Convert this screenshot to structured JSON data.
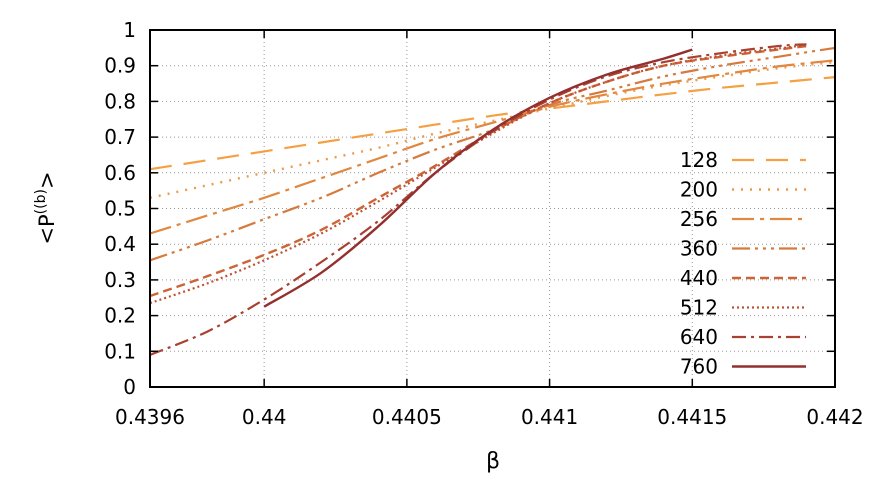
{
  "chart_data": {
    "type": "line",
    "title": "",
    "xlabel": "β",
    "ylabel_main": "<P",
    "ylabel_sup": "((b)",
    "ylabel_end": ">",
    "xlim": [
      0.4396,
      0.442
    ],
    "ylim": [
      0,
      1
    ],
    "x_ticks": [
      {
        "value": 0.4396,
        "label": "0.4396"
      },
      {
        "value": 0.44,
        "label": "0.44"
      },
      {
        "value": 0.4405,
        "label": "0.4405"
      },
      {
        "value": 0.441,
        "label": "0.441"
      },
      {
        "value": 0.4415,
        "label": "0.4415"
      },
      {
        "value": 0.442,
        "label": "0.442"
      }
    ],
    "y_ticks": [
      {
        "value": 0,
        "label": "0"
      },
      {
        "value": 0.1,
        "label": "0.1"
      },
      {
        "value": 0.2,
        "label": "0.2"
      },
      {
        "value": 0.3,
        "label": "0.3"
      },
      {
        "value": 0.4,
        "label": "0.4"
      },
      {
        "value": 0.5,
        "label": "0.5"
      },
      {
        "value": 0.6,
        "label": "0.6"
      },
      {
        "value": 0.7,
        "label": "0.7"
      },
      {
        "value": 0.8,
        "label": "0.8"
      },
      {
        "value": 0.9,
        "label": "0.9"
      },
      {
        "value": 1,
        "label": "1"
      }
    ],
    "grid": true,
    "legend_position": "bottom-right",
    "series": [
      {
        "name": "128",
        "color": "#f4a043",
        "dash": "22,12",
        "width": 2.2,
        "x": [
          0.4396,
          0.4398,
          0.44,
          0.4402,
          0.4404,
          0.4406,
          0.4408,
          0.441,
          0.4412,
          0.4414,
          0.4416,
          0.4418,
          0.442
        ],
        "y": [
          0.61,
          0.635,
          0.66,
          0.685,
          0.71,
          0.735,
          0.76,
          0.78,
          0.8,
          0.82,
          0.838,
          0.853,
          0.868
        ]
      },
      {
        "name": "200",
        "color": "#ee9a44",
        "dash": "2,7",
        "width": 2.4,
        "x": [
          0.4396,
          0.4398,
          0.44,
          0.4402,
          0.4404,
          0.4406,
          0.4408,
          0.441,
          0.4412,
          0.4414,
          0.4416,
          0.4418,
          0.442
        ],
        "y": [
          0.53,
          0.565,
          0.6,
          0.635,
          0.67,
          0.71,
          0.745,
          0.78,
          0.815,
          0.845,
          0.87,
          0.893,
          0.91
        ]
      },
      {
        "name": "256",
        "color": "#e08740",
        "dash": "22,6,4,6",
        "width": 2.2,
        "x": [
          0.4396,
          0.4398,
          0.44,
          0.4402,
          0.4404,
          0.4406,
          0.4408,
          0.441,
          0.4412,
          0.4414,
          0.4416,
          0.4418,
          0.442
        ],
        "y": [
          0.43,
          0.48,
          0.53,
          0.585,
          0.64,
          0.695,
          0.74,
          0.785,
          0.82,
          0.85,
          0.875,
          0.898,
          0.915
        ]
      },
      {
        "name": "360",
        "color": "#d67a3d",
        "dash": "18,5,3,5,3,5,3,5",
        "width": 2.2,
        "x": [
          0.4396,
          0.4398,
          0.44,
          0.4402,
          0.4404,
          0.4406,
          0.4408,
          0.441,
          0.4412,
          0.4414,
          0.4416,
          0.4418,
          0.442
        ],
        "y": [
          0.355,
          0.41,
          0.47,
          0.53,
          0.6,
          0.665,
          0.72,
          0.79,
          0.83,
          0.87,
          0.9,
          0.925,
          0.95
        ]
      },
      {
        "name": "440",
        "color": "#cc6436",
        "dash": "9,5",
        "width": 2.4,
        "x": [
          0.4396,
          0.4398,
          0.44,
          0.4402,
          0.4404,
          0.4406,
          0.4408,
          0.441,
          0.4412,
          0.4414,
          0.4416,
          0.4418,
          0.4419
        ],
        "y": [
          0.255,
          0.31,
          0.37,
          0.44,
          0.53,
          0.62,
          0.715,
          0.795,
          0.855,
          0.9,
          0.925,
          0.945,
          0.955
        ]
      },
      {
        "name": "512",
        "color": "#bf5233",
        "dash": "2,3",
        "width": 2.2,
        "x": [
          0.4396,
          0.4398,
          0.44,
          0.4402,
          0.4404,
          0.4406,
          0.4408,
          0.441,
          0.4412,
          0.4414,
          0.4416,
          0.4418,
          0.4419
        ],
        "y": [
          0.235,
          0.29,
          0.355,
          0.43,
          0.52,
          0.615,
          0.71,
          0.795,
          0.855,
          0.9,
          0.928,
          0.948,
          0.958
        ]
      },
      {
        "name": "640",
        "color": "#a94030",
        "dash": "14,5,3,5",
        "width": 2.2,
        "x": [
          0.4396,
          0.4398,
          0.44,
          0.4402,
          0.4404,
          0.4406,
          0.4408,
          0.441,
          0.4412,
          0.4414,
          0.4416,
          0.4418,
          0.4419
        ],
        "y": [
          0.09,
          0.155,
          0.245,
          0.35,
          0.465,
          0.6,
          0.715,
          0.805,
          0.87,
          0.91,
          0.935,
          0.955,
          0.96
        ]
      },
      {
        "name": "760",
        "color": "#93302f",
        "dash": "",
        "width": 2.4,
        "x": [
          0.44,
          0.4402,
          0.4404,
          0.4406,
          0.4408,
          0.441,
          0.4412,
          0.4414,
          0.4415
        ],
        "y": [
          0.225,
          0.32,
          0.45,
          0.6,
          0.72,
          0.81,
          0.875,
          0.92,
          0.945
        ]
      }
    ]
  }
}
